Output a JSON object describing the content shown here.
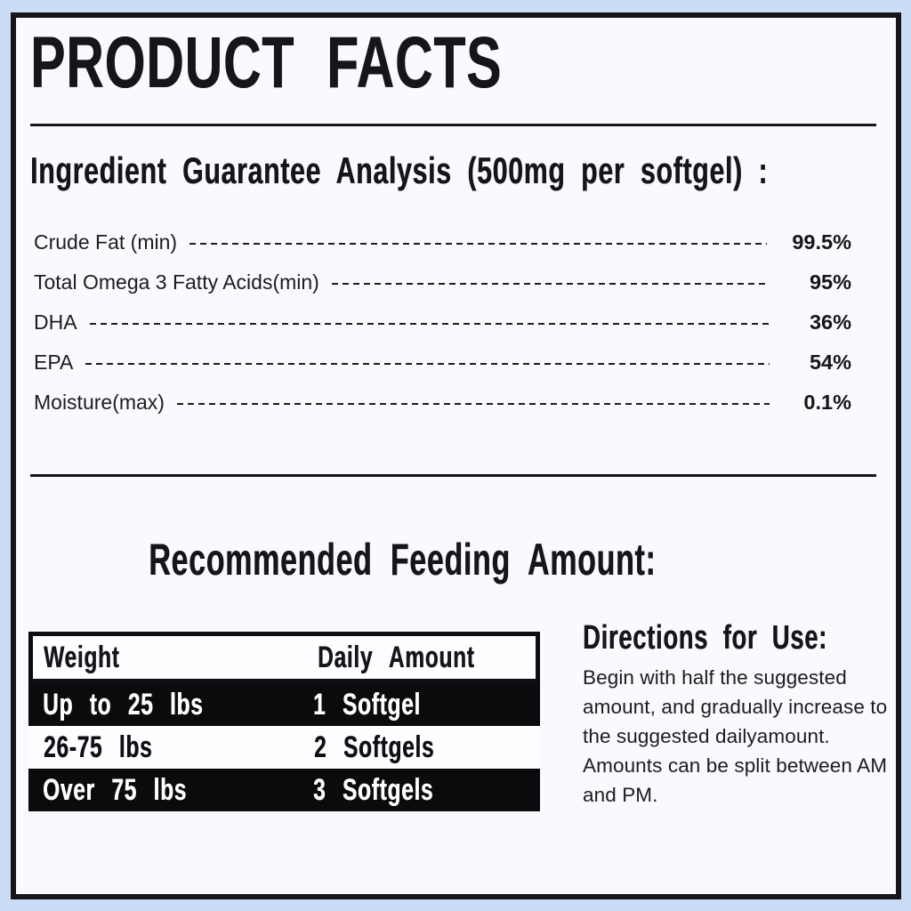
{
  "page": {
    "title": "PRODUCT FACTS"
  },
  "analysis": {
    "heading": "Ingredient Guarantee Analysis (500mg per softgel) :",
    "rows": [
      {
        "label": "Crude Fat (min)",
        "value": "99.5%"
      },
      {
        "label": "Total Omega 3 Fatty Acids(min)",
        "value": "95%"
      },
      {
        "label": "DHA",
        "value": "36%"
      },
      {
        "label": "EPA",
        "value": "54%"
      },
      {
        "label": "Moisture(max)",
        "value": "0.1%"
      }
    ]
  },
  "feeding": {
    "heading": "Recommended Feeding Amount:",
    "table": {
      "headers": [
        "Weight",
        "Daily Amount"
      ],
      "rows": [
        {
          "weight": "Up to 25 lbs",
          "amount": "1 Softgel"
        },
        {
          "weight": "26-75 lbs",
          "amount": "2 Softgels"
        },
        {
          "weight": "Over 75 lbs",
          "amount": "3 Softgels"
        }
      ]
    }
  },
  "directions": {
    "heading": "Directions for Use:",
    "body": "Begin with half the suggested amount, and gradually increase to the suggested dailyamount. Amounts can be split between AM and PM."
  },
  "colors": {
    "page_background": "#cbdcf7",
    "card_background": "#f8fafd",
    "ink": "#15151a",
    "table_dark_row": "#0b0b0e",
    "table_light_row": "#fdfeff"
  }
}
